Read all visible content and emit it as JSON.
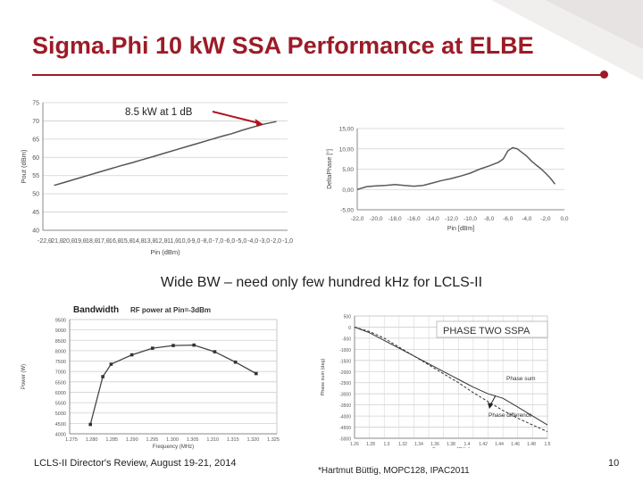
{
  "slide": {
    "title": "Sigma.Phi 10 kW SSA Performance at ELBE",
    "subtitle": "Wide BW – need only few hundred kHz for LCLS-II",
    "footer_left": "LCLS-II Director's Review, August 19-21, 2014",
    "footer_citation": "*Hartmut Büttig, MOPC128, IPAC2011",
    "page_number": "10",
    "accent_color": "#9c1b27"
  },
  "chart_data": [
    {
      "type": "line",
      "title": "",
      "xlabel": "Pin (dBm)",
      "ylabel": "Pout (dBm)",
      "x": [
        -21,
        -20,
        -19,
        -18,
        -17,
        -16,
        -15,
        -14,
        -13,
        -12,
        -11,
        -10,
        -9,
        -8,
        -7,
        -6,
        -5,
        -4,
        -3,
        -2,
        -1
      ],
      "values": [
        52.3,
        53.2,
        54.1,
        55.0,
        55.9,
        56.8,
        57.7,
        58.5,
        59.4,
        60.3,
        61.2,
        62.1,
        63.0,
        63.9,
        64.8,
        65.7,
        66.5,
        67.5,
        68.4,
        69.2,
        69.8
      ],
      "xlim": [
        -22,
        0
      ],
      "ylim": [
        40,
        75
      ],
      "xticks": [
        "-22,0",
        "-21,0",
        "-20,0",
        "-19,0",
        "-18,0",
        "-17,0",
        "-16,0",
        "-15,0",
        "-14,0",
        "-13,0",
        "-12,0",
        "-11,0",
        "-10,0",
        "-9,0",
        "-8,0",
        "-7,0",
        "-6,0",
        "-5,0",
        "-4,0",
        "-3,0",
        "-2,0",
        "-1,0"
      ],
      "yticks": [
        "40",
        "45",
        "50",
        "55",
        "60",
        "65",
        "70",
        "75"
      ],
      "annotation": "8.5 kW at 1 dB",
      "annotation_point": [
        -2.2,
        69.1
      ],
      "annotation_color": "#b1131f"
    },
    {
      "type": "line",
      "title": "",
      "xlabel": "Pin [dBm]",
      "ylabel": "DeltaPhase [°]",
      "x": [
        -22,
        -21,
        -20,
        -19,
        -18,
        -17,
        -16,
        -15,
        -14,
        -13,
        -12,
        -11,
        -10,
        -9,
        -8,
        -7,
        -6.5,
        -6,
        -5.5,
        -5,
        -4.5,
        -4,
        -3.5,
        -3,
        -2.5,
        -2,
        -1.5,
        -1
      ],
      "values": [
        0,
        0.7,
        0.9,
        1.0,
        1.2,
        1.0,
        0.8,
        1.0,
        1.6,
        2.2,
        2.7,
        3.3,
        4.0,
        5.0,
        5.8,
        6.7,
        7.5,
        9.5,
        10.3,
        10.0,
        9.1,
        8.2,
        7.0,
        6.0,
        5.1,
        4.0,
        2.8,
        1.3
      ],
      "xlim": [
        -22,
        0
      ],
      "ylim": [
        -5,
        15
      ],
      "xticks": [
        "-22,0",
        "-20,0",
        "-18,0",
        "-16,0",
        "-14,0",
        "-12,0",
        "-10,0",
        "-8,0",
        "-6,0",
        "-4,0",
        "-2,0",
        "0,0"
      ],
      "yticks": [
        "-5,00",
        "0,00",
        "5,00",
        "10,00",
        "15,00"
      ]
    },
    {
      "type": "line",
      "title": "Bandwidth",
      "subtitle": "RF power at Pin=-3dBm",
      "xlabel": "Frequency (MHz)",
      "ylabel": "Power (W)",
      "x": [
        1.28,
        1.283,
        1.285,
        1.29,
        1.295,
        1.3,
        1.305,
        1.31,
        1.315,
        1.32
      ],
      "values": [
        4450,
        6750,
        7350,
        7800,
        8120,
        8250,
        8270,
        7950,
        7450,
        6900
      ],
      "xlim": [
        1.275,
        1.325
      ],
      "ylim": [
        4000,
        9500
      ],
      "xticks": [
        "1.275",
        "1.280",
        "1.285",
        "1.290",
        "1.295",
        "1.300",
        "1.305",
        "1.310",
        "1.315",
        "1.320",
        "1.325"
      ],
      "yticks": [
        "4000",
        "4500",
        "5000",
        "5500",
        "6000",
        "6500",
        "7000",
        "7500",
        "8000",
        "8500",
        "9000",
        "9500"
      ]
    },
    {
      "type": "line",
      "title": "PHASE TWO SSPA",
      "xlabel": "Frequency [GHz]",
      "ylabel": "Phase sum (deg)",
      "x": [
        1.24,
        1.26,
        1.28,
        1.3,
        1.32,
        1.34,
        1.36,
        1.38,
        1.4,
        1.42,
        1.44,
        1.46,
        1.48,
        1.5
      ],
      "series": [
        {
          "name": "Phase sum",
          "values": [
            0,
            -250,
            -600,
            -950,
            -1300,
            -1650,
            -2000,
            -2350,
            -2700,
            -3000,
            -3200,
            -3600,
            -4000,
            -4400
          ]
        },
        {
          "name": "Phase difference",
          "values": [
            0,
            -200,
            -500,
            -900,
            -1300,
            -1700,
            -2100,
            -2500,
            -2950,
            -3350,
            -3750,
            -4100,
            -4400,
            -4700
          ]
        }
      ],
      "xlim": [
        1.24,
        1.5
      ],
      "ylim": [
        -5000,
        500
      ],
      "xticks": [
        "1.26",
        "1.28",
        "1.3",
        "1.32",
        "1.34",
        "1.36",
        "1.38",
        "1.4",
        "1.42",
        "1.44",
        "1.46",
        "1.48",
        "1.5"
      ],
      "yticks": [
        "500",
        "0",
        "-500",
        "-1000",
        "-1500",
        "-2000",
        "-2500",
        "-3000",
        "-3500",
        "-4000",
        "-4500",
        "-5000"
      ]
    }
  ]
}
